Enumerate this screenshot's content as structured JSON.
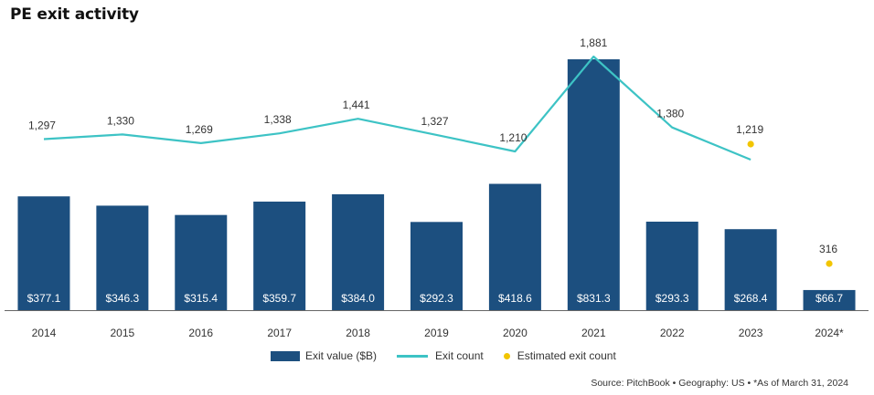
{
  "title": "PE exit activity",
  "chart_data": {
    "type": "bar",
    "categories": [
      "2014",
      "2015",
      "2016",
      "2017",
      "2018",
      "2019",
      "2020",
      "2021",
      "2022",
      "2023",
      "2024*"
    ],
    "series": [
      {
        "name": "Exit value ($B)",
        "type": "bar",
        "values": [
          377.1,
          346.3,
          315.4,
          359.7,
          384.0,
          292.3,
          418.6,
          831.3,
          293.3,
          268.4,
          66.7
        ],
        "labels": [
          "$377.1",
          "$346.3",
          "$315.4",
          "$359.7",
          "$384.0",
          "$292.3",
          "$418.6",
          "$831.3",
          "$293.3",
          "$268.4",
          "$66.7"
        ]
      },
      {
        "name": "Exit count",
        "type": "line",
        "values": [
          1297,
          1330,
          1269,
          1338,
          1441,
          1327,
          1210,
          1881,
          1380,
          1152,
          null
        ],
        "labels": [
          "1,297",
          "1,330",
          "1,269",
          "1,338",
          "1,441",
          "1,327",
          "1,210",
          "1,881",
          "1,380",
          "",
          ""
        ]
      },
      {
        "name": "Estimated exit count",
        "type": "scatter",
        "values": [
          null,
          null,
          null,
          null,
          null,
          null,
          null,
          null,
          null,
          1219,
          316
        ],
        "labels": [
          "",
          "",
          "",
          "",
          "",
          "",
          "",
          "",
          "",
          "1,219",
          "316"
        ]
      }
    ],
    "legend": "bottom",
    "grid": false,
    "colors": {
      "bar": "#1c4f7f",
      "line": "#3dc3c5",
      "dot": "#f2c500"
    }
  },
  "legend": {
    "bar": "Exit value ($B)",
    "line": "Exit count",
    "dot": "Estimated exit count"
  },
  "source": "Source: PitchBook  •  Geography: US  •  *As of March 31, 2024"
}
